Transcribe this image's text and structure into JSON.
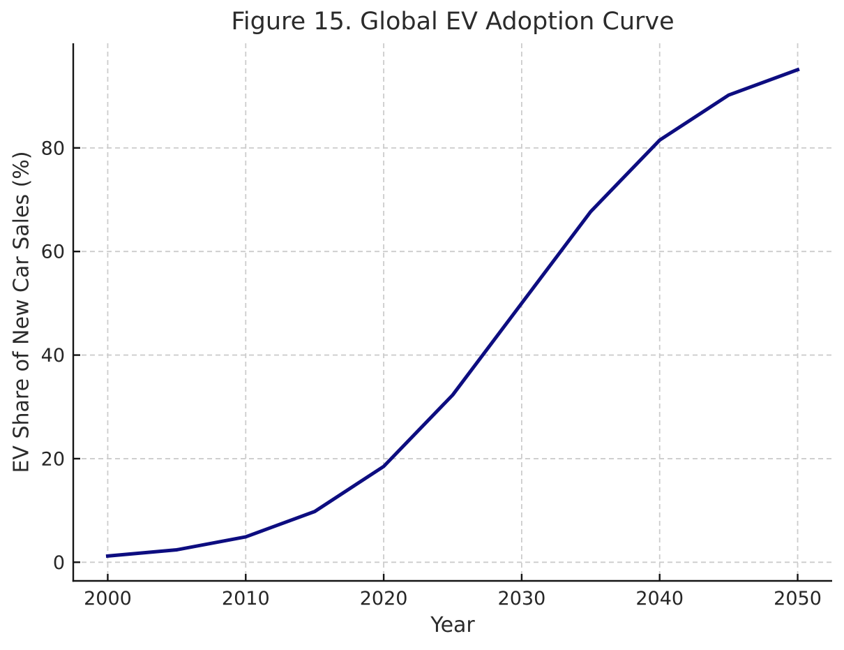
{
  "figure": {
    "background_color": "#ffffff"
  },
  "chart_data": {
    "type": "line",
    "title": "Figure 15. Global EV Adoption Curve",
    "xlabel": "Year",
    "ylabel": "EV Share of New Car Sales (%)",
    "x": [
      2000,
      2005,
      2010,
      2015,
      2020,
      2025,
      2030,
      2035,
      2040,
      2045,
      2050
    ],
    "series": [
      {
        "name": "ev-share-of-new-car-sales",
        "values": [
          1.2,
          2.4,
          4.9,
          9.8,
          18.5,
          32.3,
          50.0,
          67.7,
          81.5,
          90.2,
          95.1
        ],
        "color": "#0d0d80",
        "line_width": 5
      }
    ],
    "xticks": [
      2000,
      2010,
      2020,
      2030,
      2040,
      2050
    ],
    "yticks": [
      0,
      20,
      40,
      60,
      80
    ],
    "xlim": [
      1997.5,
      2052.5
    ],
    "ylim": [
      -3.6,
      100.2
    ],
    "grid": true,
    "grid_line_style": "dashed",
    "legend_position": "none"
  },
  "style": {
    "grid_color": "#cccccc",
    "spine_color": "#141414",
    "tick_color": "#141414",
    "tick_label_color": "#262626",
    "title_color": "#2b2b2b",
    "tick_direction": "in",
    "tick_font_size": 27
  }
}
